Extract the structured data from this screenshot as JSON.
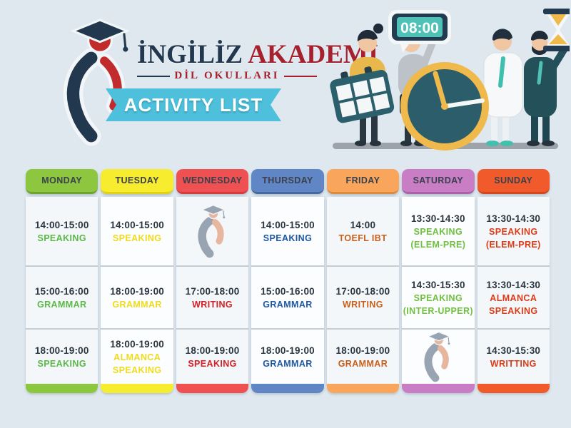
{
  "brand": {
    "title_primary": "İNGİLİZ",
    "title_secondary": "AKADEMİ",
    "subtitle": "DİL OKULLARI",
    "banner_label": "ACTIVITY LIST"
  },
  "illustration": {
    "digital_clock_time": "08:00"
  },
  "schedule": {
    "columns": [
      {
        "day": "MONDAY",
        "header_bg": "#8DC63F",
        "header_edge": "#6EA42E",
        "activity_color": "#5CB847",
        "cells": [
          {
            "time": "14:00-15:00",
            "lines": [
              "SPEAKING"
            ]
          },
          {
            "time": "15:00-16:00",
            "lines": [
              "GRAMMAR"
            ]
          },
          {
            "time": "18:00-19:00",
            "lines": [
              "SPEAKING"
            ]
          }
        ]
      },
      {
        "day": "TUESDAY",
        "header_bg": "#F7EC2E",
        "header_edge": "#DFD314",
        "activity_color": "#F0DC1C",
        "cells": [
          {
            "time": "14:00-15:00",
            "lines": [
              "SPEAKING"
            ]
          },
          {
            "time": "18:00-19:00",
            "lines": [
              "GRAMMAR"
            ]
          },
          {
            "time": "18:00-19:00",
            "lines": [
              "ALMANCA",
              "SPEAKING"
            ]
          }
        ]
      },
      {
        "day": "WEDNESDAY",
        "header_bg": "#EF5051",
        "header_edge": "#D83B3B",
        "activity_color": "#D32027",
        "cells": [
          {
            "logo": true
          },
          {
            "time": "17:00-18:00",
            "lines": [
              "WRITING"
            ]
          },
          {
            "time": "18:00-19:00",
            "lines": [
              "SPEAKING"
            ]
          }
        ]
      },
      {
        "day": "THURSDAY",
        "header_bg": "#6186C5",
        "header_edge": "#46699F",
        "activity_color": "#1F57A4",
        "cells": [
          {
            "time": "14:00-15:00",
            "lines": [
              "SPEAKING"
            ]
          },
          {
            "time": "15:00-16:00",
            "lines": [
              "GRAMMAR"
            ]
          },
          {
            "time": "18:00-19:00",
            "lines": [
              "GRAMMAR"
            ]
          }
        ]
      },
      {
        "day": "FRIDAY",
        "header_bg": "#F9A55C",
        "header_edge": "#E08A3C",
        "activity_color": "#C8601C",
        "cells": [
          {
            "time": "14:00",
            "lines": [
              "TOEFL IBT"
            ]
          },
          {
            "time": "17:00-18:00",
            "lines": [
              "WRITING"
            ]
          },
          {
            "time": "18:00-19:00",
            "lines": [
              "GRAMMAR"
            ]
          }
        ]
      },
      {
        "day": "SATURDAY",
        "header_bg": "#C87DC5",
        "header_edge": "#AD61AA",
        "activity_color": "#6FC13F",
        "cells": [
          {
            "time": "13:30-14:30",
            "lines": [
              "SPEAKING",
              "(ELEM-PRE)"
            ]
          },
          {
            "time": "14:30-15:30",
            "lines": [
              "SPEAKING",
              "(INTER-UPPER)"
            ]
          },
          {
            "logo": true
          }
        ]
      },
      {
        "day": "SUNDAY",
        "header_bg": "#F15B2C",
        "header_edge": "#D5481D",
        "activity_color": "#DD3B16",
        "cells": [
          {
            "time": "13:30-14:30",
            "lines": [
              "SPEAKING",
              "(ELEM-PRE)"
            ]
          },
          {
            "time": "13:30-14:30",
            "lines": [
              "ALMANCA",
              "SPEAKING"
            ]
          },
          {
            "time": "14:30-15:30",
            "lines": [
              "WRITTING"
            ]
          }
        ]
      }
    ]
  }
}
